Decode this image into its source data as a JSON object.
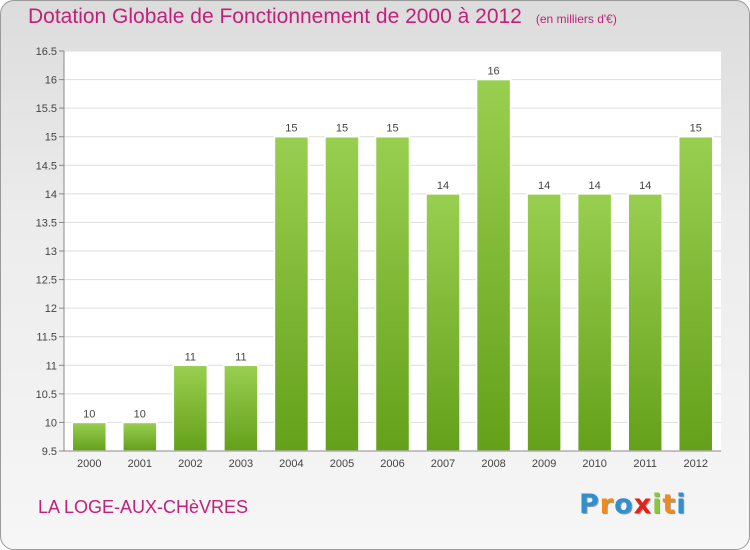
{
  "title": "Dotation Globale de Fonctionnement de 2000 à 2012",
  "unit_note": "(en milliers d'€)",
  "commune": "LA LOGE-AUX-CHèVRES",
  "logo": {
    "letters": [
      "P",
      "r",
      "o",
      "x",
      "i",
      "t",
      "i"
    ],
    "colors": [
      "#2f8fd1",
      "#f08a1c",
      "#2f8fd1",
      "#e2231a",
      "#8cc63e",
      "#f08a1c",
      "#2f8fd1"
    ]
  },
  "colors": {
    "accent": "#c2207a",
    "bar_top": "#99cf50",
    "bar_bottom": "#64a01a"
  },
  "chart_data": {
    "type": "bar",
    "categories": [
      "2000",
      "2001",
      "2002",
      "2003",
      "2004",
      "2005",
      "2006",
      "2007",
      "2008",
      "2009",
      "2010",
      "2011",
      "2012"
    ],
    "values": [
      10,
      10,
      11,
      11,
      15,
      15,
      15,
      14,
      16,
      14,
      14,
      14,
      15
    ],
    "ylim": [
      9.5,
      16.5
    ],
    "yticks": [
      "9.5",
      "10",
      "10.5",
      "11",
      "11.5",
      "12",
      "12.5",
      "13",
      "13.5",
      "14",
      "14.5",
      "15",
      "15.5",
      "16",
      "16.5"
    ],
    "grid": true,
    "data_labels": true
  }
}
